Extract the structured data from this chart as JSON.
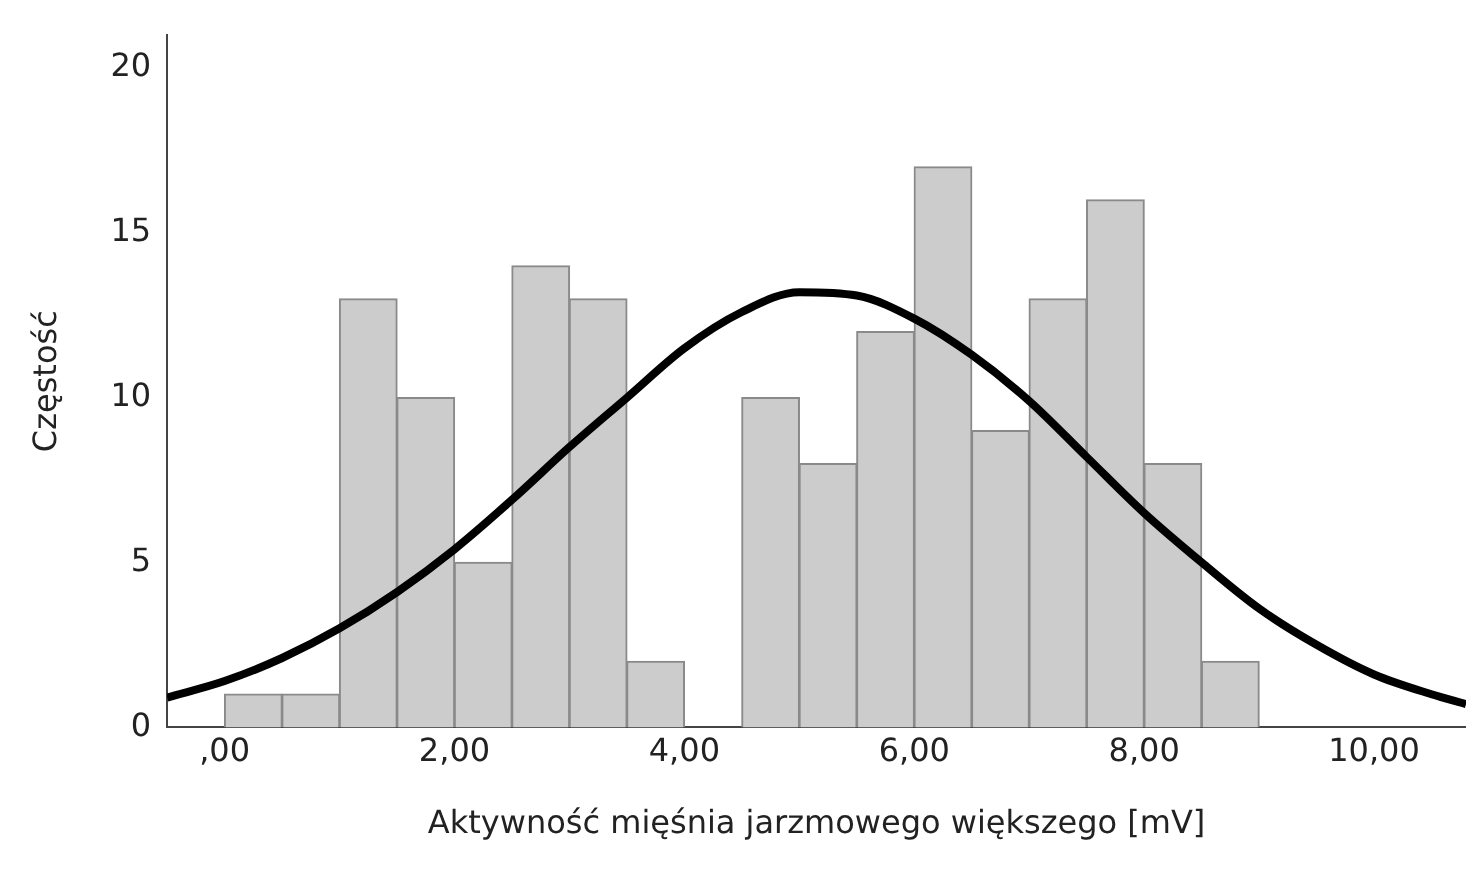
{
  "chart_data": {
    "type": "histogram",
    "xlabel": "Aktywność mięśnia jarzmowego większego [mV]",
    "ylabel": "Częstość",
    "bins": [
      0,
      0.5,
      1,
      1.5,
      2,
      2.5,
      3,
      3.5,
      4,
      4.5,
      5,
      5.5,
      6,
      6.5,
      7,
      7.5,
      8,
      8.5,
      9
    ],
    "values": [
      1,
      1,
      13,
      10,
      5,
      14,
      13,
      2,
      0,
      10,
      8,
      12,
      17,
      9,
      13,
      16,
      8,
      2
    ],
    "color": "#cccccc",
    "series": [
      {
        "type": "line",
        "color": "#000000",
        "x": [
          -0.5,
          0,
          0.5,
          1,
          1.5,
          2,
          2.5,
          3,
          3.5,
          4,
          4.5,
          5,
          5.5,
          6,
          6.5,
          7,
          7.5,
          8,
          8.5,
          9,
          9.5,
          10,
          10.5,
          10.8
        ],
        "values": [
          0.9,
          1.4,
          2.1,
          3.0,
          4.1,
          5.4,
          6.9,
          8.5,
          10.0,
          11.5,
          12.6,
          13.2,
          13.1,
          12.4,
          11.3,
          9.9,
          8.2,
          6.5,
          5.0,
          3.6,
          2.5,
          1.6,
          1.0,
          0.7
        ]
      }
    ],
    "xlim": [
      -0.5,
      10.8
    ],
    "xticks": [
      {
        "value": 0,
        "label": ",00"
      },
      {
        "value": 2,
        "label": "2,00"
      },
      {
        "value": 4,
        "label": "4,00"
      },
      {
        "value": 6,
        "label": "6,00"
      },
      {
        "value": 8,
        "label": "8,00"
      },
      {
        "value": 10,
        "label": "10,00"
      }
    ],
    "ylim": [
      0,
      21
    ],
    "yticks": [
      0,
      5,
      10,
      15,
      20
    ],
    "grid": false,
    "legend": false,
    "marker": "none",
    "line_style": "solid"
  }
}
